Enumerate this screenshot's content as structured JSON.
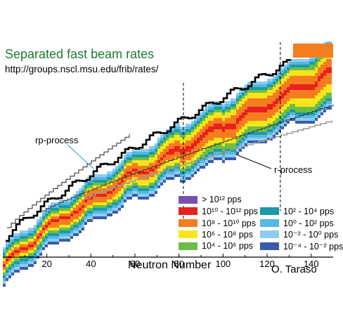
{
  "chart_data": {
    "type": "heatmap",
    "title": "Separated fast beam rates",
    "subtitle": "http://groups.nscl.msu.edu/frib/rates/",
    "xlabel": "Neutron Number",
    "ylabel": "",
    "x_ticks": [
      "20",
      "40",
      "60",
      "80",
      "100",
      "120",
      "140"
    ],
    "xlim": [
      0,
      150
    ],
    "legend": [
      {
        "label": "> 10¹² pps",
        "color": "#7b4fb0"
      },
      {
        "label": "10¹⁰ - 10¹² pps",
        "color": "#e8201e"
      },
      {
        "label": "10⁸ - 10¹⁰ pps",
        "color": "#f57d1f"
      },
      {
        "label": "10⁶ - 10⁸ pps",
        "color": "#f7e51c"
      },
      {
        "label": "10⁴ - 10⁶ pps",
        "color": "#6cbf45"
      },
      {
        "label": "10² - 10⁴ pps",
        "color": "#1b9aa8"
      },
      {
        "label": "10⁰ - 10² pps",
        "color": "#55b8e6"
      },
      {
        "label": "10⁻² - 10⁰ pps",
        "color": "#8fcdef"
      },
      {
        "label": "10⁻⁴ - 10⁻² pps",
        "color": "#3a5ca8"
      }
    ],
    "annotations": [
      "rp-process",
      "r-process"
    ],
    "credit": "O. Taraso"
  }
}
